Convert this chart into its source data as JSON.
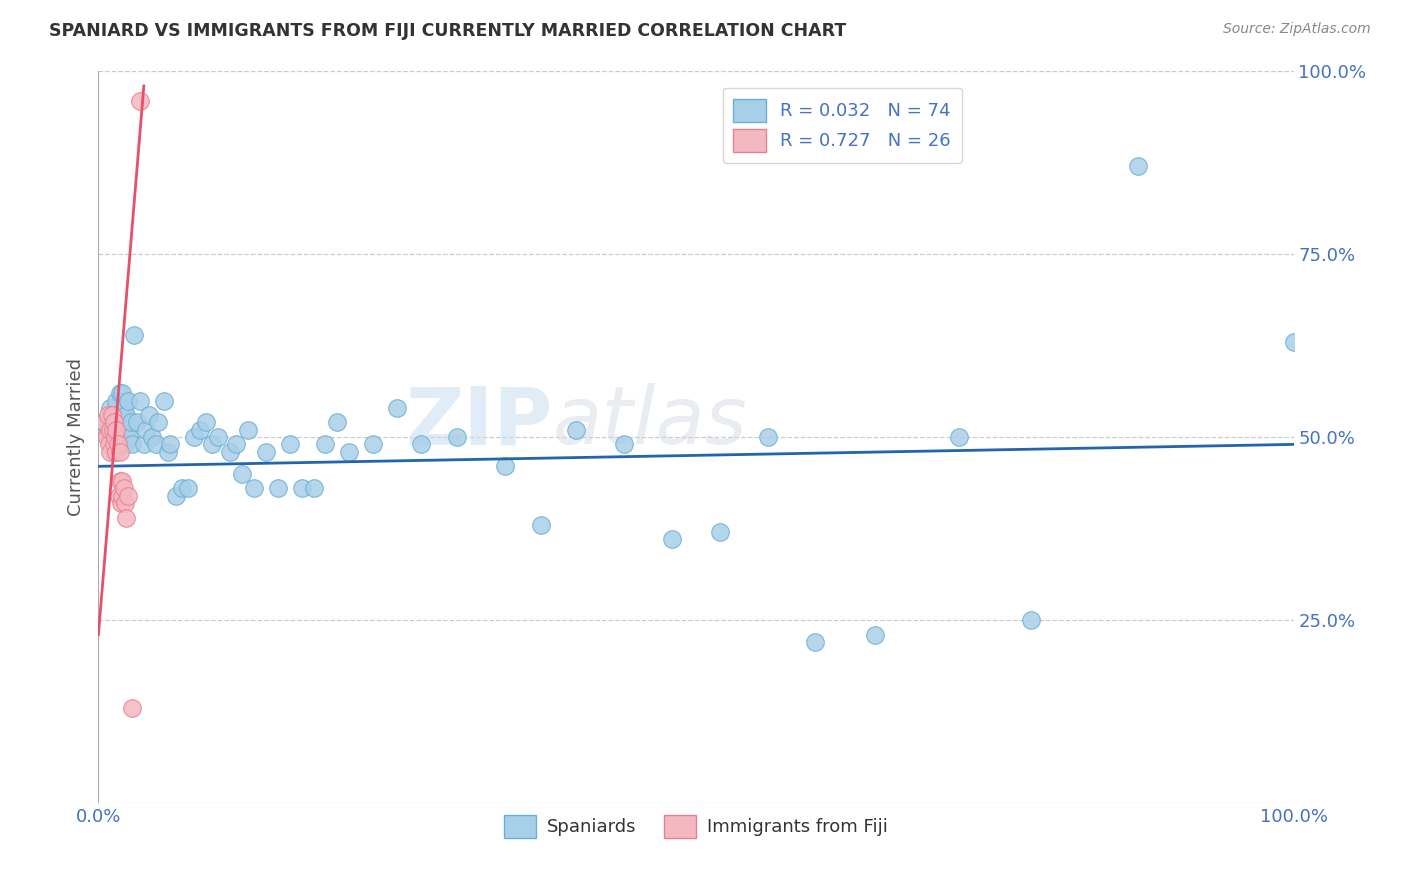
{
  "title": "SPANIARD VS IMMIGRANTS FROM FIJI CURRENTLY MARRIED CORRELATION CHART",
  "source": "Source: ZipAtlas.com",
  "ylabel_label": "Currently Married",
  "x_min": 0.0,
  "x_max": 1.0,
  "y_min": 0.0,
  "y_max": 1.0,
  "blue_color": "#a8cfe8",
  "blue_edge_color": "#6baed6",
  "pink_color": "#f4b8c1",
  "pink_edge_color": "#e87f8f",
  "blue_line_color": "#2166ac",
  "pink_line_color": "#e8506a",
  "legend_R1": "R = 0.032",
  "legend_N1": "N = 74",
  "legend_R2": "R = 0.727",
  "legend_N2": "N = 26",
  "legend_label1": "Spaniards",
  "legend_label2": "Immigrants from Fiji",
  "tick_color": "#4472c4",
  "grid_color": "#cccccc",
  "spaniards_x": [
    0.005,
    0.008,
    0.01,
    0.01,
    0.012,
    0.013,
    0.015,
    0.015,
    0.016,
    0.017,
    0.018,
    0.018,
    0.019,
    0.02,
    0.02,
    0.021,
    0.022,
    0.022,
    0.023,
    0.024,
    0.025,
    0.026,
    0.027,
    0.028,
    0.03,
    0.032,
    0.035,
    0.038,
    0.04,
    0.042,
    0.045,
    0.048,
    0.05,
    0.055,
    0.058,
    0.06,
    0.065,
    0.07,
    0.075,
    0.08,
    0.085,
    0.09,
    0.095,
    0.1,
    0.11,
    0.115,
    0.12,
    0.125,
    0.13,
    0.14,
    0.15,
    0.16,
    0.17,
    0.18,
    0.19,
    0.2,
    0.21,
    0.23,
    0.25,
    0.27,
    0.3,
    0.34,
    0.37,
    0.4,
    0.44,
    0.48,
    0.52,
    0.56,
    0.6,
    0.65,
    0.72,
    0.78,
    0.87,
    1.0
  ],
  "spaniards_y": [
    0.52,
    0.51,
    0.54,
    0.5,
    0.53,
    0.48,
    0.55,
    0.5,
    0.52,
    0.49,
    0.56,
    0.51,
    0.53,
    0.56,
    0.5,
    0.54,
    0.52,
    0.49,
    0.53,
    0.51,
    0.55,
    0.5,
    0.52,
    0.49,
    0.64,
    0.52,
    0.55,
    0.49,
    0.51,
    0.53,
    0.5,
    0.49,
    0.52,
    0.55,
    0.48,
    0.49,
    0.42,
    0.43,
    0.43,
    0.5,
    0.51,
    0.52,
    0.49,
    0.5,
    0.48,
    0.49,
    0.45,
    0.51,
    0.43,
    0.48,
    0.43,
    0.49,
    0.43,
    0.43,
    0.49,
    0.52,
    0.48,
    0.49,
    0.54,
    0.49,
    0.5,
    0.46,
    0.38,
    0.51,
    0.49,
    0.36,
    0.37,
    0.5,
    0.22,
    0.23,
    0.5,
    0.25,
    0.87,
    0.63
  ],
  "fiji_x": [
    0.005,
    0.007,
    0.008,
    0.009,
    0.01,
    0.01,
    0.011,
    0.012,
    0.013,
    0.013,
    0.014,
    0.015,
    0.015,
    0.016,
    0.017,
    0.018,
    0.018,
    0.019,
    0.02,
    0.02,
    0.021,
    0.022,
    0.023,
    0.025,
    0.028,
    0.035
  ],
  "fiji_y": [
    0.52,
    0.5,
    0.53,
    0.49,
    0.51,
    0.48,
    0.53,
    0.51,
    0.49,
    0.52,
    0.5,
    0.48,
    0.51,
    0.49,
    0.42,
    0.44,
    0.48,
    0.41,
    0.42,
    0.44,
    0.43,
    0.41,
    0.39,
    0.42,
    0.13,
    0.96
  ],
  "blue_trend": [
    0.0,
    1.0,
    0.46,
    0.49
  ],
  "pink_trend_x": [
    0.0,
    0.038
  ],
  "pink_trend_y": [
    0.23,
    0.98
  ]
}
